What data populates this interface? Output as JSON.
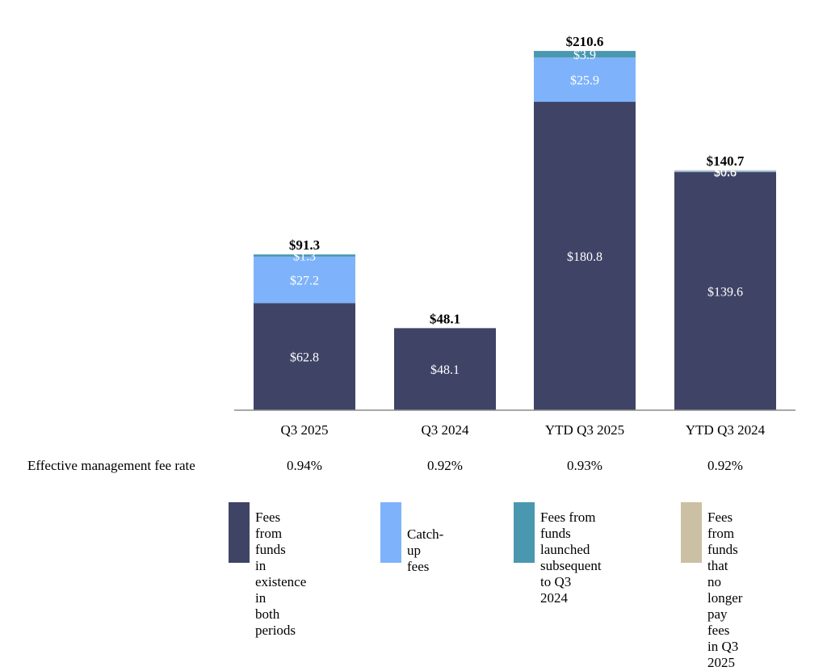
{
  "chart_data": {
    "type": "bar",
    "stacked": true,
    "categories": [
      "Q3 2025",
      "Q3 2024",
      "YTD Q3 2025",
      "YTD Q3 2024"
    ],
    "series": [
      {
        "name": "Fees from funds in existence in both periods",
        "color": "#3f4466",
        "values": [
          62.8,
          48.1,
          180.8,
          139.6
        ],
        "labels": [
          "$62.8",
          "$48.1",
          "$180.8",
          "$139.6"
        ]
      },
      {
        "name": "Catch-up fees",
        "color": "#7eb3fb",
        "values": [
          27.2,
          0,
          25.9,
          0.6
        ],
        "labels": [
          "$27.2",
          "",
          "$25.9",
          "$0.6"
        ]
      },
      {
        "name": "Fees from funds launched subsequent to Q3 2024",
        "color": "#4a98b0",
        "values": [
          1.3,
          0,
          3.9,
          0
        ],
        "labels": [
          "$1.3",
          "",
          "$3.9",
          ""
        ]
      },
      {
        "name": "Fees from funds that no longer pay fees in Q3 2025",
        "color": "#cbc0a3",
        "values": [
          0,
          0,
          0,
          0.5
        ],
        "labels": [
          "",
          "",
          "",
          "$0.5"
        ]
      }
    ],
    "totals": [
      "$91.3",
      "$48.1",
      "$210.6",
      "$140.7"
    ],
    "ylim": [
      0,
      222
    ],
    "title": "",
    "xlabel": "",
    "ylabel": "",
    "grid": false,
    "legend": "bottom"
  },
  "rates": {
    "label": "Effective management fee rate",
    "values": [
      "0.94%",
      "0.92%",
      "0.93%",
      "0.92%"
    ]
  },
  "legend": {
    "items": [
      {
        "text": "Fees from funds\nin existence in\nboth periods",
        "color": "#3f4466"
      },
      {
        "text": "Catch-up fees",
        "color": "#7eb3fb"
      },
      {
        "text": "Fees from funds\nlaunched subsequent\nto Q3 2024",
        "color": "#4a98b0"
      },
      {
        "text": "Fees from funds\nthat no longer pay\nfees in Q3 2025",
        "color": "#cbc0a3"
      }
    ]
  }
}
